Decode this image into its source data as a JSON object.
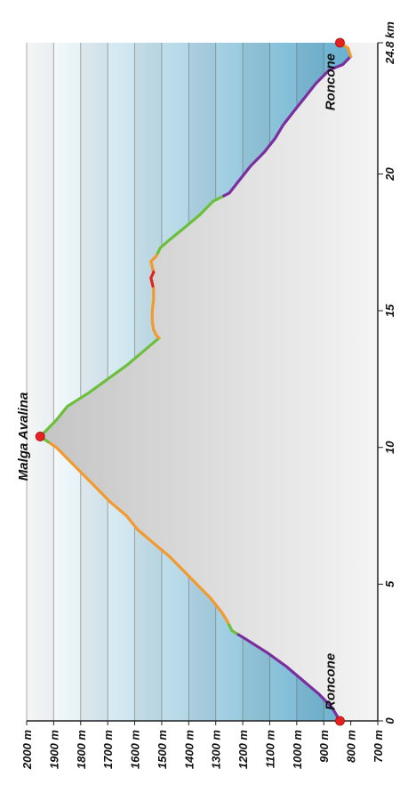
{
  "colors": {
    "difficulty": {
      "purple": "#7b2f9e",
      "green": "#6cbf3a",
      "orange": "#f29a2e",
      "red": "#e3221b"
    },
    "band_dark": "#5aa9cb",
    "band_light": "#ffffff",
    "fill": "#cfcfcf",
    "marker": "#e82020",
    "axis": "#222222",
    "grid": "#6a6a6a"
  },
  "chart_data": {
    "type": "area",
    "title": "",
    "xlabel": "",
    "ylabel": "",
    "orientation": "rotated 90° clockwise (distance axis vertical, elevation axis horizontal)",
    "xlim": [
      0,
      24.8
    ],
    "ylim": [
      700,
      2000
    ],
    "x_ticks": [
      {
        "value": 0,
        "label": "0"
      },
      {
        "value": 5,
        "label": "5"
      },
      {
        "value": 10,
        "label": "10"
      },
      {
        "value": 15,
        "label": "15"
      },
      {
        "value": 20,
        "label": "20"
      },
      {
        "value": 24.8,
        "label": "24.8 km"
      }
    ],
    "y_ticks": [
      {
        "value": 2000,
        "label": "2000 m"
      },
      {
        "value": 1900,
        "label": "1900 m"
      },
      {
        "value": 1800,
        "label": "1800 m"
      },
      {
        "value": 1700,
        "label": "1700 m"
      },
      {
        "value": 1600,
        "label": "1600 m"
      },
      {
        "value": 1500,
        "label": "1500 m"
      },
      {
        "value": 1400,
        "label": "1400 m"
      },
      {
        "value": 1300,
        "label": "1300 m"
      },
      {
        "value": 1200,
        "label": "1200 m"
      },
      {
        "value": 1100,
        "label": "1100 m"
      },
      {
        "value": 1000,
        "label": "1000 m"
      },
      {
        "value": 900,
        "label": "900 m"
      },
      {
        "value": 800,
        "label": "800 m"
      },
      {
        "value": 700,
        "label": "700 m"
      }
    ],
    "x": [
      0,
      0.5,
      1.0,
      1.5,
      2.0,
      2.5,
      3.0,
      3.3,
      3.7,
      4.0,
      4.5,
      5.0,
      5.5,
      6.0,
      6.5,
      7.0,
      7.5,
      8.0,
      8.5,
      9.0,
      9.5,
      10.0,
      10.2,
      10.4,
      10.7,
      11.0,
      11.5,
      12.0,
      12.5,
      13.0,
      13.5,
      14.0,
      14.1,
      14.3,
      14.6,
      15.0,
      15.4,
      15.8,
      16.0,
      16.2,
      16.4,
      16.6,
      16.8,
      17.0,
      17.3,
      17.6,
      18.0,
      18.5,
      19.0,
      19.3,
      19.8,
      20.3,
      20.8,
      21.3,
      21.8,
      22.3,
      22.8,
      23.3,
      23.8,
      24.0,
      24.3,
      24.6,
      24.8
    ],
    "y": [
      840,
      870,
      920,
      980,
      1040,
      1110,
      1190,
      1240,
      1260,
      1280,
      1320,
      1370,
      1420,
      1470,
      1530,
      1590,
      1630,
      1690,
      1740,
      1790,
      1840,
      1890,
      1920,
      1950,
      1920,
      1890,
      1850,
      1770,
      1700,
      1630,
      1570,
      1510,
      1520,
      1530,
      1535,
      1535,
      1530,
      1530,
      1535,
      1540,
      1530,
      1535,
      1540,
      1520,
      1505,
      1470,
      1420,
      1360,
      1310,
      1250,
      1210,
      1170,
      1120,
      1080,
      1050,
      1010,
      970,
      930,
      880,
      830,
      800,
      810,
      840
    ],
    "segments": [
      {
        "from_km": 0,
        "to_km": 3.2,
        "color": "purple"
      },
      {
        "from_km": 3.2,
        "to_km": 3.6,
        "color": "green"
      },
      {
        "from_km": 3.6,
        "to_km": 10.2,
        "color": "orange"
      },
      {
        "from_km": 10.2,
        "to_km": 14.0,
        "color": "green"
      },
      {
        "from_km": 14.0,
        "to_km": 15.9,
        "color": "orange"
      },
      {
        "from_km": 15.9,
        "to_km": 16.5,
        "color": "red"
      },
      {
        "from_km": 16.5,
        "to_km": 17.1,
        "color": "orange"
      },
      {
        "from_km": 17.1,
        "to_km": 19.2,
        "color": "green"
      },
      {
        "from_km": 19.2,
        "to_km": 24.3,
        "color": "purple"
      },
      {
        "from_km": 24.3,
        "to_km": 24.8,
        "color": "orange"
      }
    ],
    "waypoints": [
      {
        "km": 0,
        "elevation": 840,
        "label": "Roncone"
      },
      {
        "km": 10.4,
        "elevation": 1950,
        "label": "Malga Avalina"
      },
      {
        "km": 24.8,
        "elevation": 840,
        "label": "Roncone"
      }
    ]
  }
}
